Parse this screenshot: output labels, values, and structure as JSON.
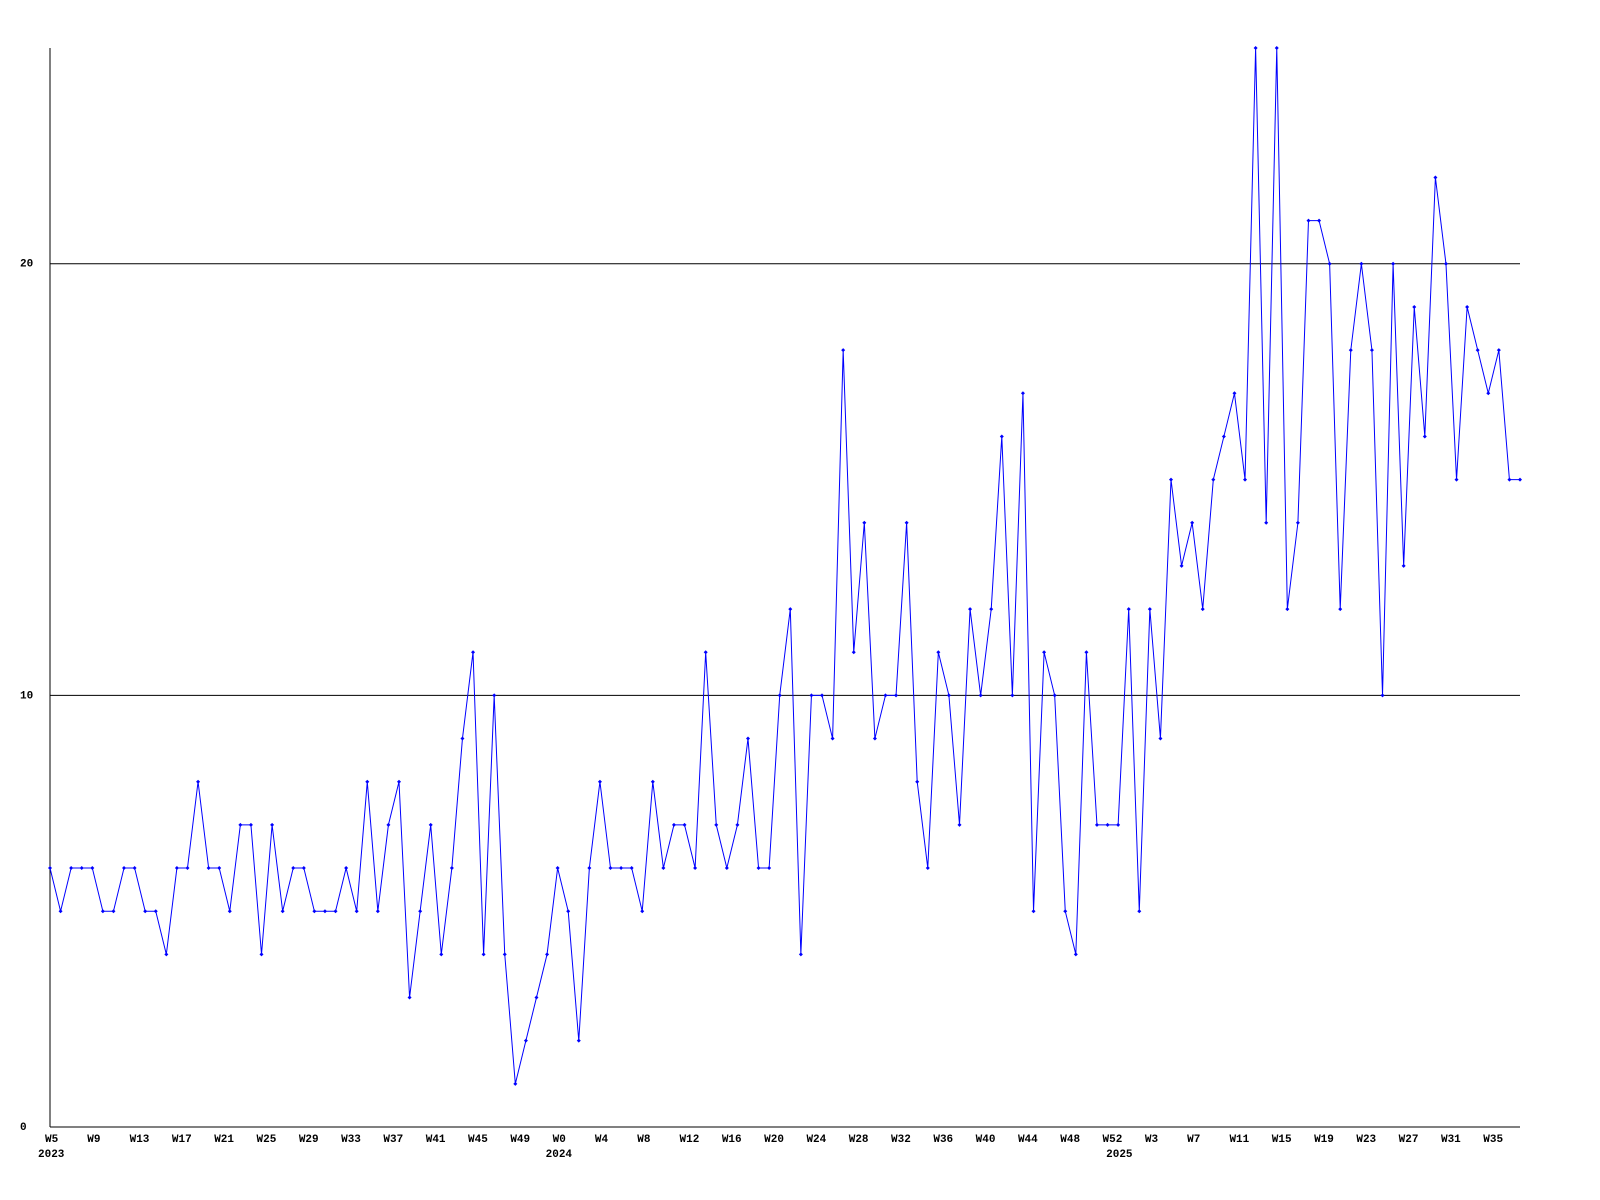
{
  "chart_data": {
    "type": "line",
    "categories": [
      "W5",
      null,
      null,
      null,
      "W9",
      null,
      null,
      null,
      "W13",
      null,
      null,
      null,
      "W17",
      null,
      null,
      null,
      "W21",
      null,
      null,
      null,
      "W25",
      null,
      null,
      null,
      "W29",
      null,
      null,
      null,
      "W33",
      null,
      null,
      null,
      "W37",
      null,
      null,
      null,
      "W41",
      null,
      null,
      null,
      "W45",
      null,
      null,
      null,
      "W49",
      null,
      null,
      null,
      "W0",
      null,
      null,
      null,
      "W4",
      null,
      null,
      null,
      "W8",
      null,
      null,
      null,
      "W12",
      null,
      null,
      null,
      "W16",
      null,
      null,
      null,
      "W20",
      null,
      null,
      null,
      "W24",
      null,
      null,
      null,
      "W28",
      null,
      null,
      null,
      "W32",
      null,
      null,
      null,
      "W36",
      null,
      null,
      null,
      "W40",
      null,
      null,
      null,
      "W44",
      null,
      null,
      null,
      "W48",
      null,
      null,
      null,
      "W52",
      null,
      null,
      null,
      "W3",
      null,
      null,
      null,
      "W7",
      null,
      null,
      null,
      "W11",
      null,
      null,
      null,
      "W15",
      null,
      null,
      null,
      "W19",
      null,
      null,
      null,
      "W23",
      null,
      null,
      null,
      "W27",
      null,
      null,
      null,
      "W31",
      null,
      null,
      null,
      "W35",
      null,
      null,
      null
    ],
    "year_labels": [
      "2023",
      null,
      null,
      null,
      null,
      null,
      null,
      null,
      null,
      null,
      null,
      null,
      null,
      null,
      null,
      null,
      null,
      null,
      null,
      null,
      null,
      null,
      null,
      null,
      null,
      null,
      null,
      null,
      null,
      null,
      null,
      null,
      null,
      null,
      null,
      null,
      null,
      null,
      null,
      null,
      null,
      null,
      null,
      null,
      null,
      null,
      null,
      null,
      "2024",
      null,
      null,
      null,
      null,
      null,
      null,
      null,
      null,
      null,
      null,
      null,
      null,
      null,
      null,
      null,
      null,
      null,
      null,
      null,
      null,
      null,
      null,
      null,
      null,
      null,
      null,
      null,
      null,
      null,
      null,
      null,
      null,
      null,
      null,
      null,
      null,
      null,
      null,
      null,
      null,
      null,
      null,
      null,
      null,
      null,
      null,
      null,
      null,
      null,
      null,
      null,
      null,
      "2025",
      null,
      null,
      null,
      null,
      null,
      null,
      null,
      null,
      null,
      null,
      null,
      null,
      null,
      null,
      null,
      null,
      null,
      null,
      null,
      null,
      null,
      null,
      null,
      null,
      null,
      null,
      null,
      null,
      null,
      null,
      null,
      null,
      null,
      null,
      null,
      null,
      null,
      null
    ],
    "series": [
      {
        "color": "#0000ff",
        "values": [
          6,
          5,
          6,
          6,
          6,
          5,
          5,
          6,
          6,
          5,
          5,
          4,
          6,
          6,
          8,
          6,
          6,
          5,
          7,
          7,
          4,
          7,
          5,
          6,
          6,
          5,
          5,
          5,
          6,
          5,
          8,
          5,
          7,
          8,
          3,
          5,
          7,
          4,
          6,
          9,
          11,
          4,
          10,
          4,
          1,
          2,
          3,
          4,
          6,
          5,
          2,
          6,
          8,
          6,
          6,
          6,
          5,
          8,
          6,
          7,
          7,
          6,
          11,
          7,
          6,
          7,
          9,
          6,
          6,
          10,
          12,
          4,
          10,
          10,
          9,
          18,
          11,
          14,
          9,
          10,
          10,
          14,
          8,
          6,
          11,
          10,
          7,
          12,
          10,
          12,
          16,
          10,
          17,
          5,
          11,
          10,
          5,
          4,
          11,
          7,
          7,
          7,
          12,
          5,
          12,
          9,
          15,
          13,
          14,
          12,
          15,
          16,
          17,
          15,
          25,
          14,
          25,
          12,
          14,
          21,
          21,
          20,
          12,
          18,
          20,
          18,
          10,
          20,
          13,
          19,
          16,
          22,
          20,
          15,
          19,
          18,
          17,
          18,
          15,
          15
        ]
      }
    ],
    "ylim": [
      0,
      25
    ],
    "yticks": [
      0,
      10,
      20
    ],
    "grid": true
  }
}
